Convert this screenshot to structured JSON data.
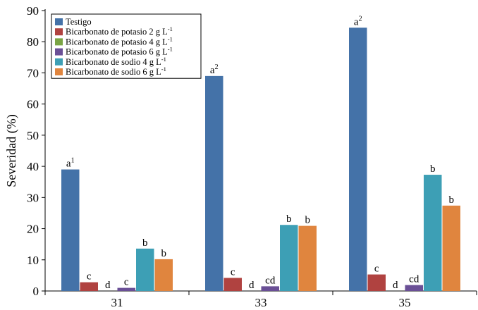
{
  "chart_data": {
    "type": "bar",
    "title": "",
    "xlabel": "",
    "ylabel": "Severidad (%)",
    "ylim": [
      0,
      90
    ],
    "yticks": [
      0,
      10,
      20,
      30,
      40,
      50,
      60,
      70,
      80,
      90
    ],
    "categories": [
      "31",
      "33",
      "35"
    ],
    "legend_position": "top-left",
    "grid": false,
    "series": [
      {
        "name": "Testigo",
        "color": "#4472a8",
        "values": [
          39,
          69,
          84.5
        ],
        "labels": [
          "a",
          "a",
          "a"
        ],
        "label_sups": [
          "1",
          "2",
          "2"
        ]
      },
      {
        "name": "Bicarbonato de potasio 2 g L",
        "name_sup": "-1",
        "color": "#b04240",
        "values": [
          2.8,
          4.2,
          5.3
        ],
        "labels": [
          "c",
          "c",
          "c"
        ]
      },
      {
        "name": "Bicarbonato de potasio 4 g L",
        "name_sup": "-1",
        "color": "#7aa444",
        "values": [
          0,
          0,
          0
        ],
        "labels": [
          "d",
          "d",
          "d"
        ]
      },
      {
        "name": "Bicarbonato de potasio 6 g L",
        "name_sup": "-1",
        "color": "#6a4f96",
        "values": [
          1.0,
          1.5,
          1.9
        ],
        "labels": [
          "c",
          "cd",
          "cd"
        ]
      },
      {
        "name": "Bicarbonato de sodio  4 g L",
        "name_sup": "-1",
        "color": "#3d9fb5",
        "values": [
          13.6,
          21.2,
          37.3
        ],
        "labels": [
          "b",
          "b",
          "b"
        ]
      },
      {
        "name": "Bicarbonato de sodio 6 g L",
        "name_sup": "-1",
        "color": "#e0853e",
        "values": [
          10.2,
          20.9,
          27.4
        ],
        "labels": [
          "b",
          "b",
          "b"
        ]
      }
    ]
  }
}
